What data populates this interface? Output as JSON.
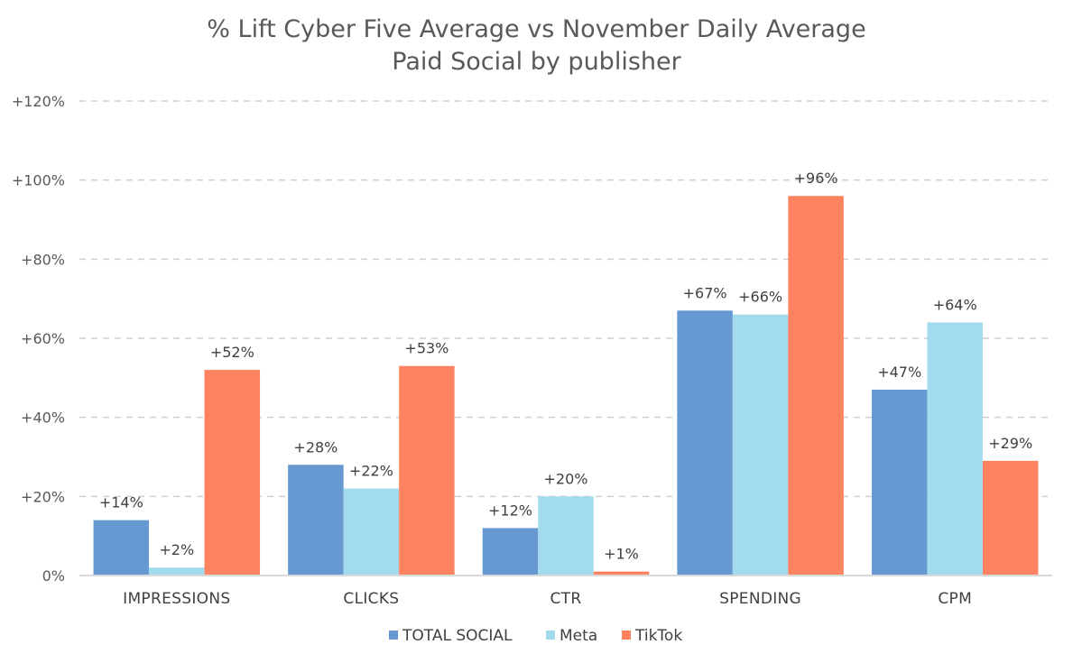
{
  "chart_data": {
    "type": "bar",
    "title": "% Lift Cyber Five Average vs November Daily Average",
    "subtitle": "Paid Social by publisher",
    "categories": [
      "IMPRESSIONS",
      "CLICKS",
      "CTR",
      "SPENDING",
      "CPM"
    ],
    "series": [
      {
        "name": "TOTAL SOCIAL",
        "color": "#6699D2",
        "values": [
          14,
          28,
          12,
          67,
          47
        ],
        "labels": [
          "+14%",
          "+28%",
          "+12%",
          "+67%",
          "+47%"
        ]
      },
      {
        "name": "Meta",
        "color": "#A3DBEE",
        "values": [
          2,
          22,
          20,
          66,
          64
        ],
        "labels": [
          "+2%",
          "+22%",
          "+20%",
          "+66%",
          "+64%"
        ]
      },
      {
        "name": "TikTok",
        "color": "#FF8361",
        "values": [
          52,
          53,
          1,
          96,
          29
        ],
        "labels": [
          "+52%",
          "+53%",
          "+1%",
          "+96%",
          "+29%"
        ]
      }
    ],
    "ylim": [
      0,
      120
    ],
    "yticks": [
      0,
      20,
      40,
      60,
      80,
      100,
      120
    ],
    "ytick_labels": [
      "0%",
      "+20%",
      "+40%",
      "+60%",
      "+80%",
      "+100%",
      "+120%"
    ],
    "xlabel": "",
    "ylabel": "",
    "grid": true,
    "legend_position": "bottom"
  }
}
